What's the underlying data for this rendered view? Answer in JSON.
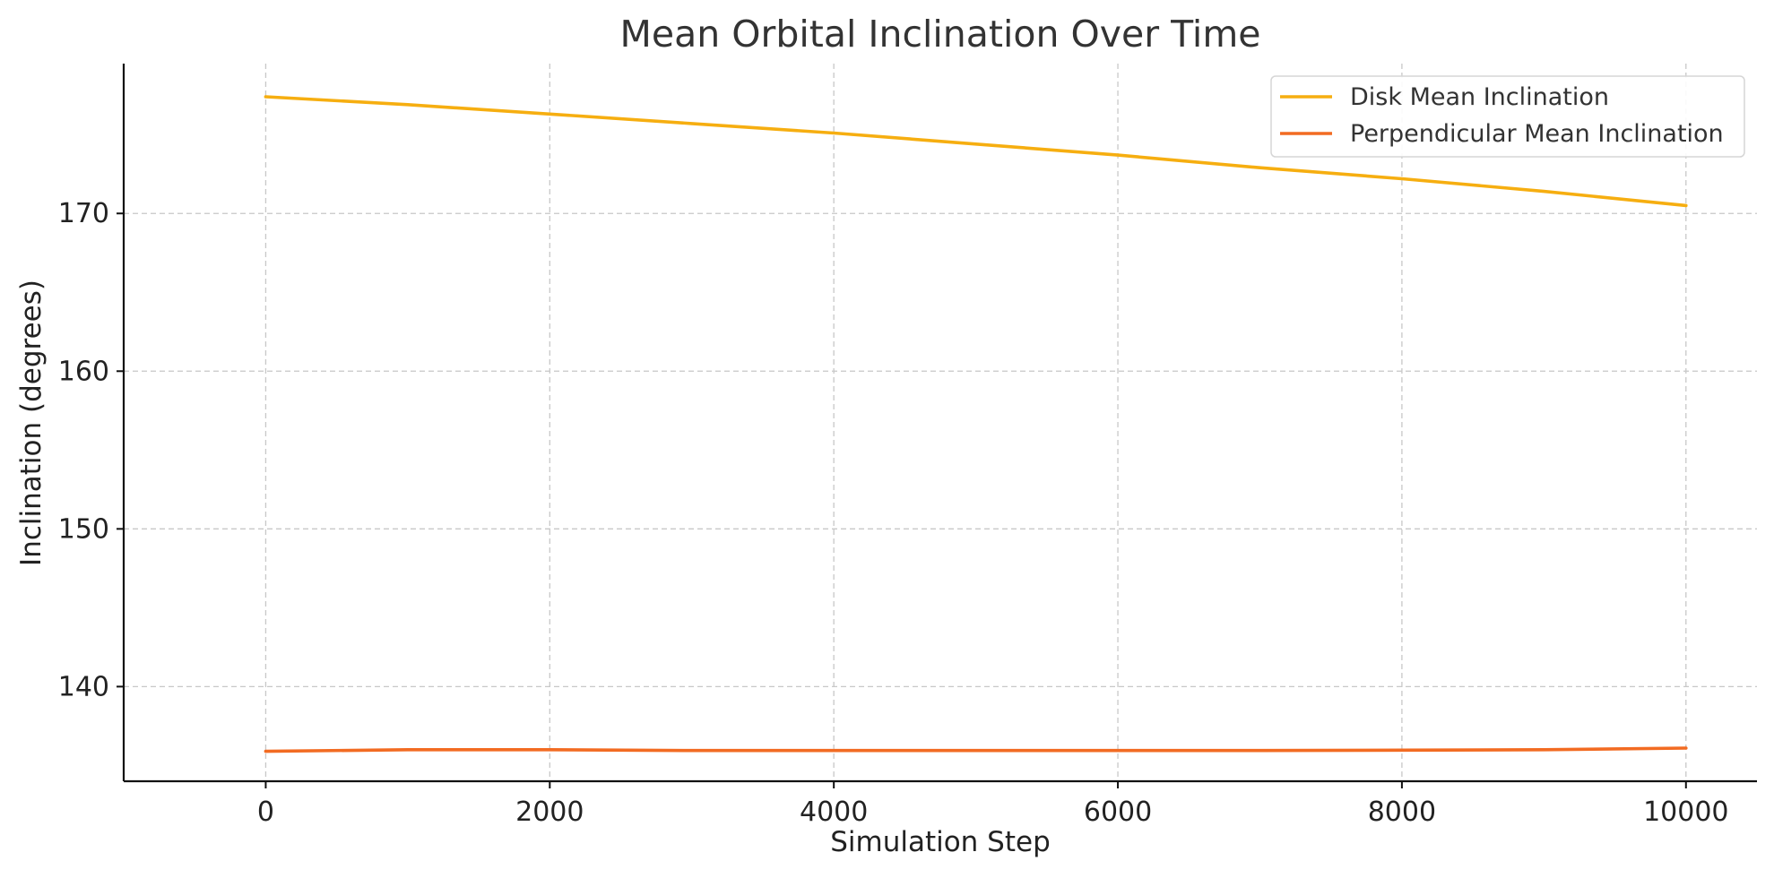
{
  "chart_data": {
    "type": "line",
    "title": "Mean Orbital Inclination Over Time",
    "xlabel": "Simulation Step",
    "ylabel": "Inclination (degrees)",
    "xlim": [
      -1000,
      10500
    ],
    "ylim": [
      134,
      179.5
    ],
    "xticks": [
      0,
      2000,
      4000,
      6000,
      8000,
      10000
    ],
    "yticks": [
      140,
      150,
      160,
      170
    ],
    "grid": true,
    "legend_position": "top-right",
    "series": [
      {
        "name": "Disk Mean Inclination",
        "color": "#f6ae10",
        "x": [
          0,
          1000,
          2000,
          3000,
          4000,
          5000,
          6000,
          7000,
          8000,
          9000,
          10000
        ],
        "y": [
          177.4,
          176.9,
          176.3,
          175.7,
          175.1,
          174.4,
          173.7,
          172.9,
          172.2,
          171.4,
          170.5
        ]
      },
      {
        "name": "Perpendicular Mean Inclination",
        "color": "#f26b22",
        "x": [
          0,
          1000,
          2000,
          3000,
          4000,
          5000,
          6000,
          7000,
          8000,
          9000,
          10000
        ],
        "y": [
          135.9,
          136.0,
          136.0,
          135.95,
          135.95,
          135.95,
          135.95,
          135.95,
          135.97,
          136.0,
          136.1
        ]
      }
    ]
  }
}
